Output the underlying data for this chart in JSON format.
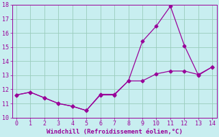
{
  "xlabel": "Windchill (Refroidissement éolien,°C)",
  "x_jagged": [
    0,
    1,
    2,
    3,
    4,
    5,
    6,
    7,
    8,
    9,
    10,
    11,
    12,
    13,
    14
  ],
  "y_jagged": [
    11.6,
    11.8,
    11.4,
    11.0,
    10.8,
    10.5,
    11.6,
    11.6,
    12.6,
    15.4,
    16.5,
    17.9,
    15.1,
    13.0,
    13.6
  ],
  "x_smooth": [
    0,
    1,
    2,
    3,
    4,
    5,
    6,
    7,
    8,
    9,
    10,
    11,
    12,
    13,
    14
  ],
  "y_smooth": [
    11.6,
    11.8,
    11.4,
    11.0,
    10.8,
    10.5,
    11.65,
    11.65,
    12.6,
    12.6,
    13.1,
    13.3,
    13.3,
    13.05,
    13.6
  ],
  "line_color": "#990099",
  "marker": "D",
  "markersize": 2.5,
  "linewidth": 0.9,
  "xlim": [
    0,
    14
  ],
  "ylim": [
    10,
    18
  ],
  "yticks": [
    10,
    11,
    12,
    13,
    14,
    15,
    16,
    17,
    18
  ],
  "xticks": [
    0,
    1,
    2,
    3,
    4,
    5,
    6,
    7,
    8,
    9,
    10,
    11,
    12,
    13,
    14
  ],
  "bg_color": "#c8eef0",
  "grid_color": "#99ccbb",
  "tick_color": "#990099",
  "label_color": "#990099"
}
